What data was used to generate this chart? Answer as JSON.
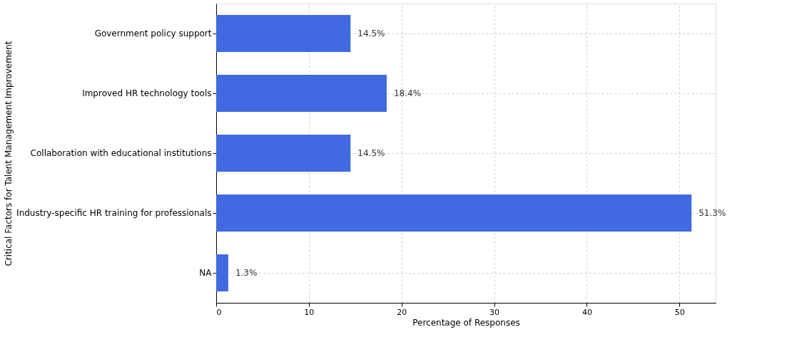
{
  "chart_data": {
    "type": "bar",
    "orientation": "horizontal",
    "xlabel": "Percentage of Responses",
    "ylabel": "Critical Factors for Talent Management Improvement",
    "categories": [
      "Government policy support",
      "Improved HR technology tools",
      "Collaboration with educational institutions",
      "Industry-specific HR training for professionals",
      "NA"
    ],
    "values": [
      14.5,
      18.4,
      14.5,
      51.3,
      1.3
    ],
    "value_labels": [
      "14.5%",
      "18.4%",
      "14.5%",
      "51.3%",
      "1.3%"
    ],
    "color": "#4169e1",
    "xlim": [
      0,
      53.9
    ],
    "xticks": [
      0,
      10,
      20,
      30,
      40,
      50
    ],
    "grid": true
  }
}
